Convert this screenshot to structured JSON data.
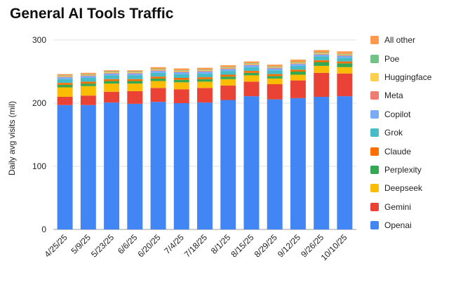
{
  "chart_data": {
    "type": "bar",
    "stacked": true,
    "title": "General AI Tools Traffic",
    "xlabel": "",
    "ylabel": "Daily avg visits (mil)",
    "ylim": [
      0,
      300
    ],
    "yticks": [
      0,
      100,
      200,
      300
    ],
    "grid": true,
    "legend_position": "right",
    "categories": [
      "4/25/25",
      "5/9/25",
      "5/23/25",
      "6/6/25",
      "6/20/25",
      "7/4/25",
      "7/18/25",
      "8/1/25",
      "8/15/25",
      "8/29/25",
      "9/12/25",
      "9/26/25",
      "10/10/25"
    ],
    "series": [
      {
        "name": "Openai",
        "color": "#4285f4",
        "values": [
          197,
          197,
          201,
          199,
          202,
          200,
          201,
          205,
          211,
          206,
          208,
          210,
          211
        ]
      },
      {
        "name": "Gemini",
        "color": "#ea4335",
        "values": [
          13,
          15,
          17,
          20,
          22,
          22,
          23,
          23,
          23,
          24,
          28,
          38,
          36
        ]
      },
      {
        "name": "Deepseek",
        "color": "#fbbc04",
        "values": [
          15,
          15,
          13,
          12,
          11,
          11,
          10,
          10,
          10,
          9,
          9,
          11,
          10
        ]
      },
      {
        "name": "Perplexity",
        "color": "#34a853",
        "values": [
          4,
          4,
          4,
          4,
          4,
          4,
          4,
          4,
          4,
          4,
          5,
          6,
          6
        ]
      },
      {
        "name": "Claude",
        "color": "#ff6d01",
        "values": [
          3,
          3,
          3,
          3,
          3,
          3,
          3,
          3,
          3,
          3,
          3,
          3,
          3
        ]
      },
      {
        "name": "Grok",
        "color": "#46bdc6",
        "values": [
          6,
          6,
          6,
          6,
          6,
          6,
          6,
          6,
          6,
          6,
          6,
          6,
          6
        ]
      },
      {
        "name": "Copilot",
        "color": "#7baaf7",
        "values": [
          3,
          3,
          3,
          3,
          3,
          3,
          3,
          3,
          3,
          3,
          3,
          3,
          3
        ]
      },
      {
        "name": "Meta",
        "color": "#f07b72",
        "values": [
          1,
          1,
          1,
          1,
          1,
          1,
          1,
          1,
          1,
          1,
          1,
          1,
          1
        ]
      },
      {
        "name": "Huggingface",
        "color": "#fcd04f",
        "values": [
          1,
          1,
          1,
          1,
          1,
          1,
          1,
          1,
          1,
          1,
          1,
          1,
          1
        ]
      },
      {
        "name": "Poe",
        "color": "#71c287",
        "values": [
          1,
          1,
          1,
          1,
          1,
          1,
          1,
          1,
          1,
          1,
          1,
          1,
          1
        ]
      },
      {
        "name": "All other",
        "color": "#ff994d",
        "values": [
          2,
          2,
          2,
          2,
          3,
          3,
          3,
          3,
          3,
          3,
          4,
          4,
          4
        ]
      }
    ]
  }
}
